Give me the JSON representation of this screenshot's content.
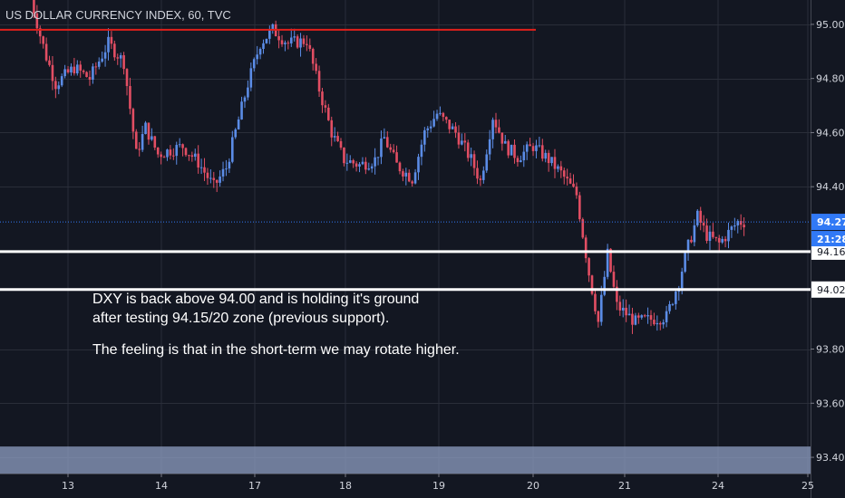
{
  "chart_data": {
    "type": "candlestick",
    "title": "US DOLLAR CURRENCY INDEX, 60, TVC",
    "xlabel": "",
    "ylabel": "",
    "x_tick_labels": [
      "13",
      "14",
      "17",
      "18",
      "19",
      "20",
      "21",
      "24",
      "25"
    ],
    "y_tick_values": [
      95.0,
      94.8,
      94.6,
      94.4,
      94.27,
      94.16,
      94.02,
      93.8,
      93.6,
      93.4
    ],
    "y_tick_labels": [
      "95.00",
      "94.80",
      "94.60",
      "94.40",
      "94.27",
      "94.16",
      "94.02",
      "93.80",
      "93.60",
      "93.40"
    ],
    "ylim": [
      93.34,
      95.09
    ],
    "grid": true,
    "current_price": {
      "value": 94.27,
      "label": "94.27",
      "countdown": "21:28"
    },
    "horizontal_lines": [
      {
        "value": 94.98,
        "color": "#e0201b",
        "label": ""
      },
      {
        "value": 94.16,
        "color": "#ffffff",
        "label": "94.16"
      },
      {
        "value": 94.02,
        "color": "#ffffff",
        "label": "94.02"
      }
    ],
    "zone": {
      "from": 93.34,
      "to": 93.44,
      "color": "#8f9fc3"
    },
    "anchors": [
      {
        "t": 0,
        "v": 95.1
      },
      {
        "t": 3,
        "v": 94.96
      },
      {
        "t": 5,
        "v": 94.88
      },
      {
        "t": 8,
        "v": 94.78
      },
      {
        "t": 14,
        "v": 94.84
      },
      {
        "t": 19,
        "v": 94.8
      },
      {
        "t": 25,
        "v": 94.93
      },
      {
        "t": 30,
        "v": 94.86
      },
      {
        "t": 34,
        "v": 94.52
      },
      {
        "t": 37,
        "v": 94.62
      },
      {
        "t": 41,
        "v": 94.52
      },
      {
        "t": 49,
        "v": 94.55
      },
      {
        "t": 54,
        "v": 94.49
      },
      {
        "t": 59,
        "v": 94.4
      },
      {
        "t": 63,
        "v": 94.47
      },
      {
        "t": 70,
        "v": 94.78
      },
      {
        "t": 74,
        "v": 94.93
      },
      {
        "t": 78,
        "v": 94.98
      },
      {
        "t": 83,
        "v": 94.93
      },
      {
        "t": 89,
        "v": 94.94
      },
      {
        "t": 93,
        "v": 94.76
      },
      {
        "t": 97,
        "v": 94.6
      },
      {
        "t": 101,
        "v": 94.5
      },
      {
        "t": 106,
        "v": 94.48
      },
      {
        "t": 111,
        "v": 94.5
      },
      {
        "t": 114,
        "v": 94.58
      },
      {
        "t": 118,
        "v": 94.48
      },
      {
        "t": 123,
        "v": 94.43
      },
      {
        "t": 127,
        "v": 94.6
      },
      {
        "t": 131,
        "v": 94.67
      },
      {
        "t": 137,
        "v": 94.6
      },
      {
        "t": 142,
        "v": 94.5
      },
      {
        "t": 145,
        "v": 94.42
      },
      {
        "t": 149,
        "v": 94.66
      },
      {
        "t": 153,
        "v": 94.55
      },
      {
        "t": 157,
        "v": 94.51
      },
      {
        "t": 162,
        "v": 94.55
      },
      {
        "t": 167,
        "v": 94.5
      },
      {
        "t": 171,
        "v": 94.45
      },
      {
        "t": 176,
        "v": 94.37
      },
      {
        "t": 180,
        "v": 94.08
      },
      {
        "t": 183,
        "v": 93.9
      },
      {
        "t": 186,
        "v": 94.15
      },
      {
        "t": 189,
        "v": 93.96
      },
      {
        "t": 195,
        "v": 93.9
      },
      {
        "t": 200,
        "v": 93.91
      },
      {
        "t": 205,
        "v": 93.92
      },
      {
        "t": 209,
        "v": 94.05
      },
      {
        "t": 212,
        "v": 94.18
      },
      {
        "t": 215,
        "v": 94.29
      },
      {
        "t": 218,
        "v": 94.22
      },
      {
        "t": 222,
        "v": 94.19
      },
      {
        "t": 225,
        "v": 94.23
      },
      {
        "t": 228,
        "v": 94.27
      },
      {
        "t": 230,
        "v": 94.27
      }
    ]
  },
  "annotation": {
    "line1": "DXY is back above 94.00 and is holding it's ground",
    "line2": "after testing 94.15/20 zone (previous support).",
    "line3": "The feeling is that in the short-term we may rotate higher."
  },
  "colors": {
    "background": "#131722",
    "grid": "#2a2e39",
    "up": "#5b8ce6",
    "down": "#e24e63",
    "axis_text": "#d1d4dc",
    "price_line": "#3179f5"
  }
}
